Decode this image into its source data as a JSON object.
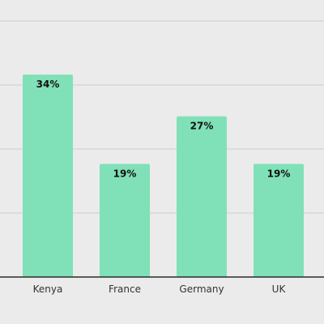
{
  "chart_data": {
    "type": "bar",
    "categories": [
      "Kenya",
      "France",
      "Germany",
      "UK"
    ],
    "values": [
      34,
      19,
      27,
      19
    ],
    "value_labels": [
      "34%",
      "19%",
      "27%",
      "19%"
    ],
    "title": "",
    "xlabel": "",
    "ylabel": "",
    "ylim": [
      0,
      43
    ],
    "grid": true,
    "colors": {
      "bar": "#80e0b8",
      "background": "#ebebeb",
      "grid": "#d2d2d2",
      "baseline": "#2a2a2a"
    }
  }
}
